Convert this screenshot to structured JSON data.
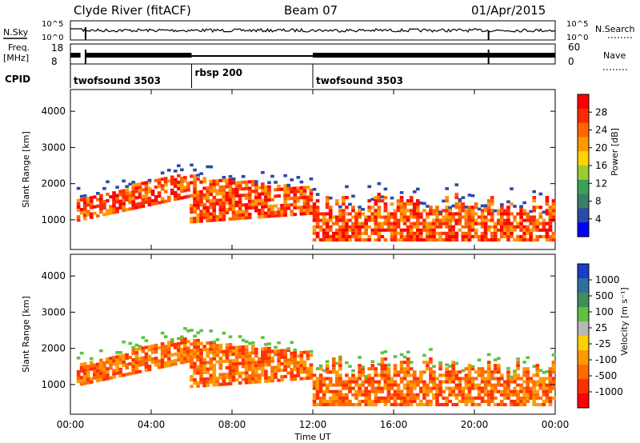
{
  "header": {
    "station": "Clyde River (fitACF)",
    "beam": "Beam 07",
    "date": "01/Apr/2015"
  },
  "top_panels": {
    "noise_left_label": "N.Sky",
    "noise_right_label": "N.Search",
    "noise_left_ticks": [
      "10^5",
      "10^0"
    ],
    "noise_right_ticks": [
      "10^5",
      "10^0"
    ],
    "freq_label_line1": "Freq.",
    "freq_label_line2": "[MHz]",
    "freq_ticks": [
      "18",
      "8"
    ],
    "nave_label": "Nave",
    "nave_ticks": [
      "60",
      "0"
    ],
    "cpid_label": "CPID",
    "cpid_segments": [
      {
        "label": "twofsound 3503",
        "start": 0,
        "end": 6
      },
      {
        "label": "rbsp 200",
        "start": 6,
        "end": 12
      },
      {
        "label": "twofsound 3503",
        "start": 12,
        "end": 24
      }
    ]
  },
  "chart_data": [
    {
      "type": "heatmap",
      "ylabel": "Slant Range [km]",
      "y_ticks": [
        "1000",
        "2000",
        "3000",
        "4000"
      ],
      "ylim": [
        180,
        4600
      ],
      "colorbar_label": "Power [dB]",
      "colorbar_ticks": [
        "4",
        "8",
        "12",
        "16",
        "20",
        "24",
        "28"
      ],
      "colors": [
        "#0000ff",
        "#2b4aa8",
        "#3a7f6a",
        "#3aa05a",
        "#9acd32",
        "#ffd400",
        "#ff9900",
        "#ff6600",
        "#ff2a00",
        "#ff0000"
      ]
    },
    {
      "type": "heatmap",
      "ylabel": "Slant Range [km]",
      "y_ticks": [
        "1000",
        "2000",
        "3000",
        "4000"
      ],
      "ylim": [
        180,
        4600
      ],
      "xlabel": "Time UT",
      "x_ticks": [
        "00:00",
        "04:00",
        "08:00",
        "12:00",
        "16:00",
        "20:00",
        "00:00"
      ],
      "xlim": [
        0,
        24
      ],
      "colorbar_label": "Velocity [m s⁻¹]",
      "colorbar_ticks": [
        "1000",
        "500",
        "100",
        "25",
        "-25",
        "-100",
        "-500",
        "-1000"
      ],
      "colors": [
        "#1a3cc8",
        "#2f6fa0",
        "#3f8f5a",
        "#60c040",
        "#b8b8b8",
        "#ffd000",
        "#ff9900",
        "#ff6a00",
        "#ff3000",
        "#ff0000"
      ]
    }
  ]
}
